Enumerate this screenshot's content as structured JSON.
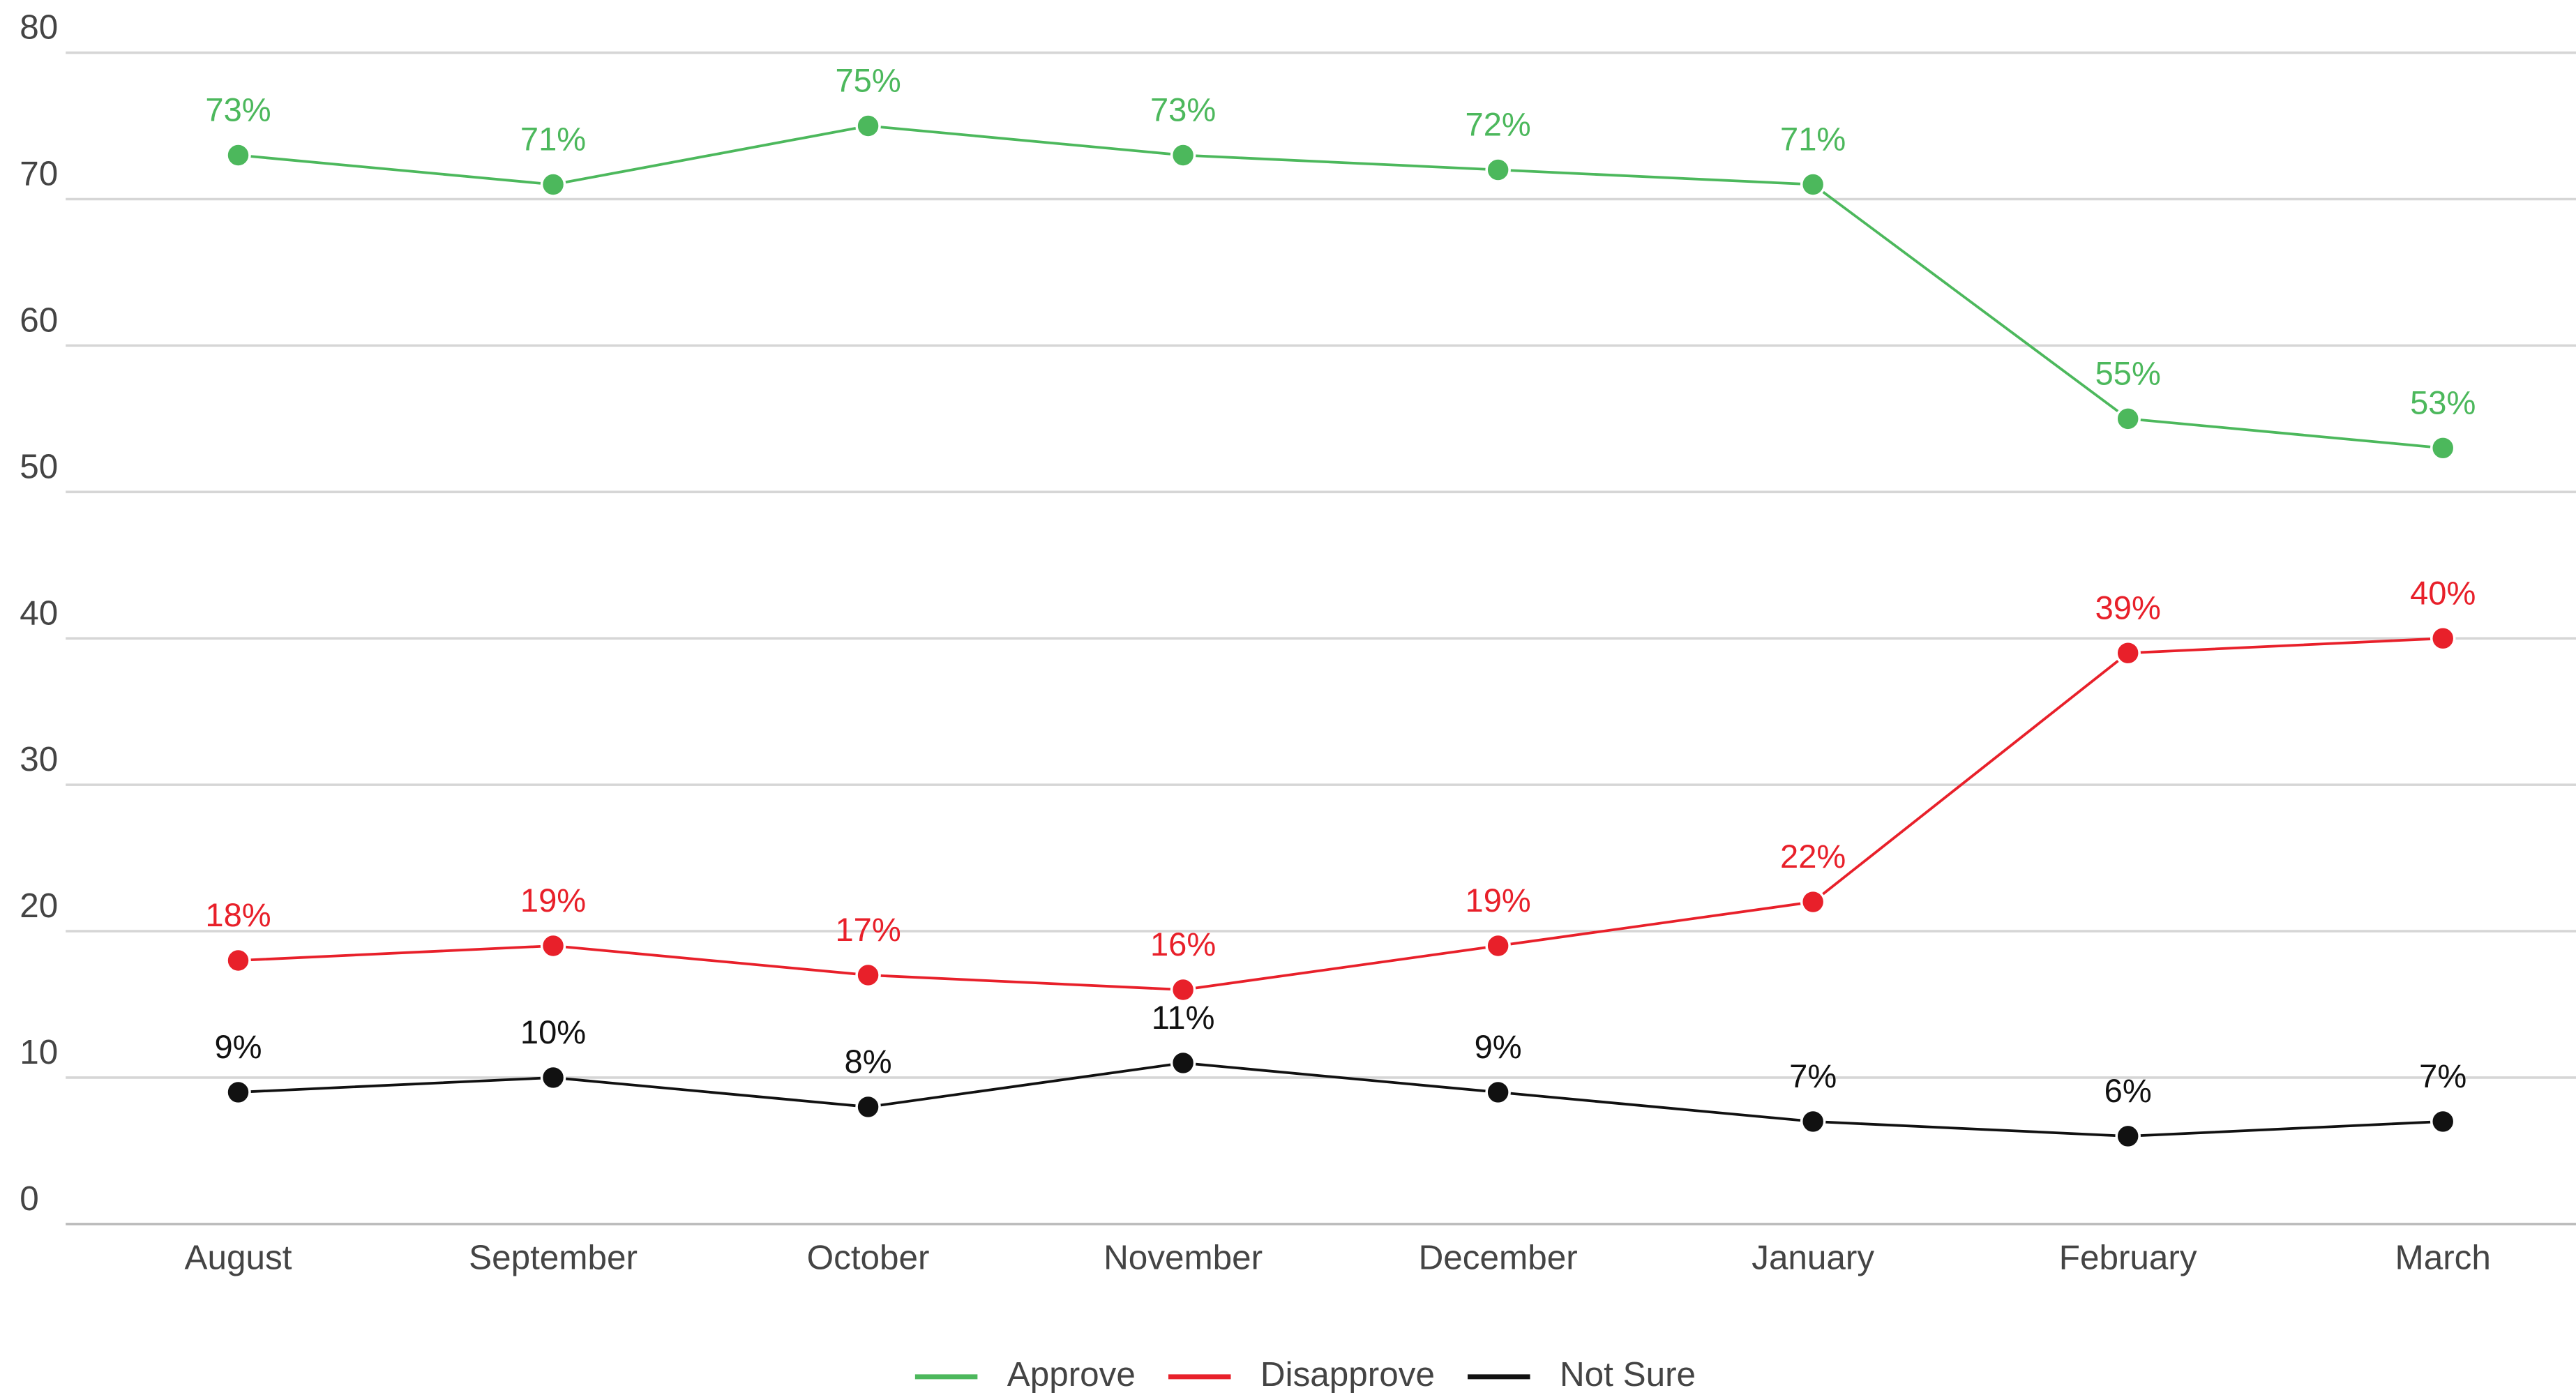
{
  "chart_data": {
    "type": "line",
    "categories": [
      "August",
      "September",
      "October",
      "November",
      "December",
      "January",
      "February",
      "March"
    ],
    "series": [
      {
        "name": "Approve",
        "color": "#4cb85c",
        "values": [
          73,
          71,
          75,
          73,
          72,
          71,
          55,
          53
        ],
        "value_labels": [
          "73%",
          "71%",
          "75%",
          "73%",
          "72%",
          "71%",
          "55%",
          "53%"
        ]
      },
      {
        "name": "Disapprove",
        "color": "#e8202a",
        "values": [
          18,
          19,
          17,
          16,
          19,
          22,
          39,
          40
        ],
        "value_labels": [
          "18%",
          "19%",
          "17%",
          "16%",
          "19%",
          "22%",
          "39%",
          "40%"
        ]
      },
      {
        "name": "Not Sure",
        "color": "#111111",
        "values": [
          9,
          10,
          8,
          11,
          9,
          7,
          6,
          7
        ],
        "value_labels": [
          "9%",
          "10%",
          "8%",
          "11%",
          "9%",
          "7%",
          "6%",
          "7%"
        ]
      }
    ],
    "ylim": [
      0,
      80
    ],
    "yticks": [
      0,
      10,
      20,
      30,
      40,
      50,
      60,
      70,
      80
    ],
    "grid": true,
    "legend": "bottom"
  }
}
